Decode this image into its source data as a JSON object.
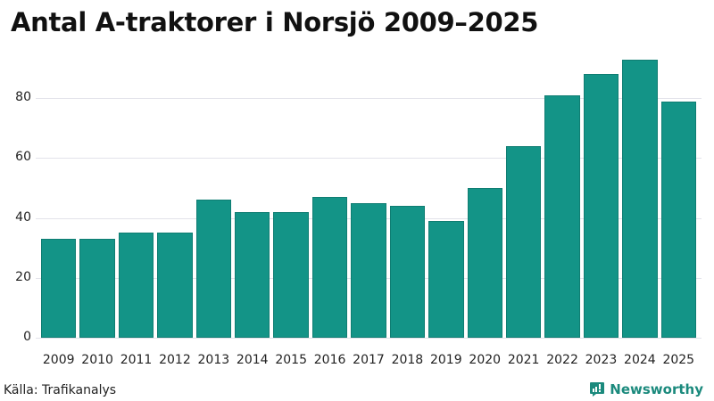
{
  "title": "Antal A-traktorer i Norsjö 2009–2025",
  "source": "Källa: Trafikanalys",
  "brand": {
    "name": "Newsworthy",
    "icon": "newsworthy-chart-bubble-icon",
    "color": "#1b8a7d"
  },
  "colors": {
    "bar": "#139487",
    "grid": "#e3e3ea"
  },
  "chart_data": {
    "type": "bar",
    "title": "Antal A-traktorer i Norsjö 2009–2025",
    "xlabel": "",
    "ylabel": "",
    "categories": [
      "2009",
      "2010",
      "2011",
      "2012",
      "2013",
      "2014",
      "2015",
      "2016",
      "2017",
      "2018",
      "2019",
      "2020",
      "2021",
      "2022",
      "2023",
      "2024",
      "2025"
    ],
    "values": [
      33,
      33,
      35,
      35,
      46,
      42,
      42,
      47,
      45,
      44,
      39,
      50,
      64,
      81,
      88,
      93,
      79
    ],
    "yticks": [
      0,
      20,
      40,
      60,
      80
    ],
    "ylim": [
      0,
      95
    ],
    "grid": true,
    "legend": null,
    "source": "Källa: Trafikanalys"
  }
}
